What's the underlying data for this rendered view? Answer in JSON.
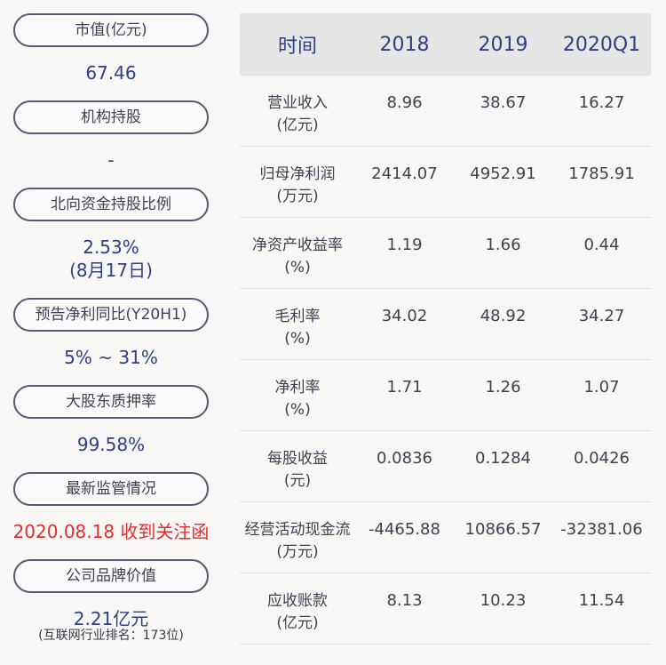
{
  "metrics": [
    {
      "label": "市值(亿元)",
      "value": "67.46"
    },
    {
      "label": "机构持股",
      "value": "-"
    },
    {
      "label": "北向资金持股比例",
      "value": "2.53%",
      "value2": "(8月17日)"
    },
    {
      "label": "预告净利同比(Y20H1)",
      "value": "5% ~ 31%"
    },
    {
      "label": "大股东质押率",
      "value": "99.58%"
    },
    {
      "label": "最新监管情况",
      "value": "2020.08.18 收到关注函",
      "value_color": "#e0302c"
    },
    {
      "label": "公司品牌价值",
      "value": "2.21亿元",
      "value2": "(互联网行业排名：173位)"
    }
  ],
  "table": {
    "headers": [
      "时间",
      "2018",
      "2019",
      "2020Q1"
    ],
    "rows": [
      {
        "label": "营业收入",
        "unit": "(亿元)",
        "values": [
          "8.96",
          "38.67",
          "16.27"
        ]
      },
      {
        "label": "归母净利润",
        "unit": "(万元)",
        "values": [
          "2414.07",
          "4952.91",
          "1785.91"
        ]
      },
      {
        "label": "净资产收益率",
        "unit": "(%)",
        "values": [
          "1.19",
          "1.66",
          "0.44"
        ]
      },
      {
        "label": "毛利率",
        "unit": "(%)",
        "values": [
          "34.02",
          "48.92",
          "34.27"
        ]
      },
      {
        "label": "净利率",
        "unit": "(%)",
        "values": [
          "1.71",
          "1.26",
          "1.07"
        ]
      },
      {
        "label": "每股收益",
        "unit": "(元)",
        "values": [
          "0.0836",
          "0.1284",
          "0.0426"
        ]
      },
      {
        "label": "经营活动现金流",
        "unit": "(万元)",
        "values": [
          "-4465.88",
          "10866.57",
          "-32381.06"
        ]
      },
      {
        "label": "应收账款",
        "unit": "(亿元)",
        "values": [
          "8.13",
          "10.23",
          "11.54"
        ]
      }
    ]
  }
}
